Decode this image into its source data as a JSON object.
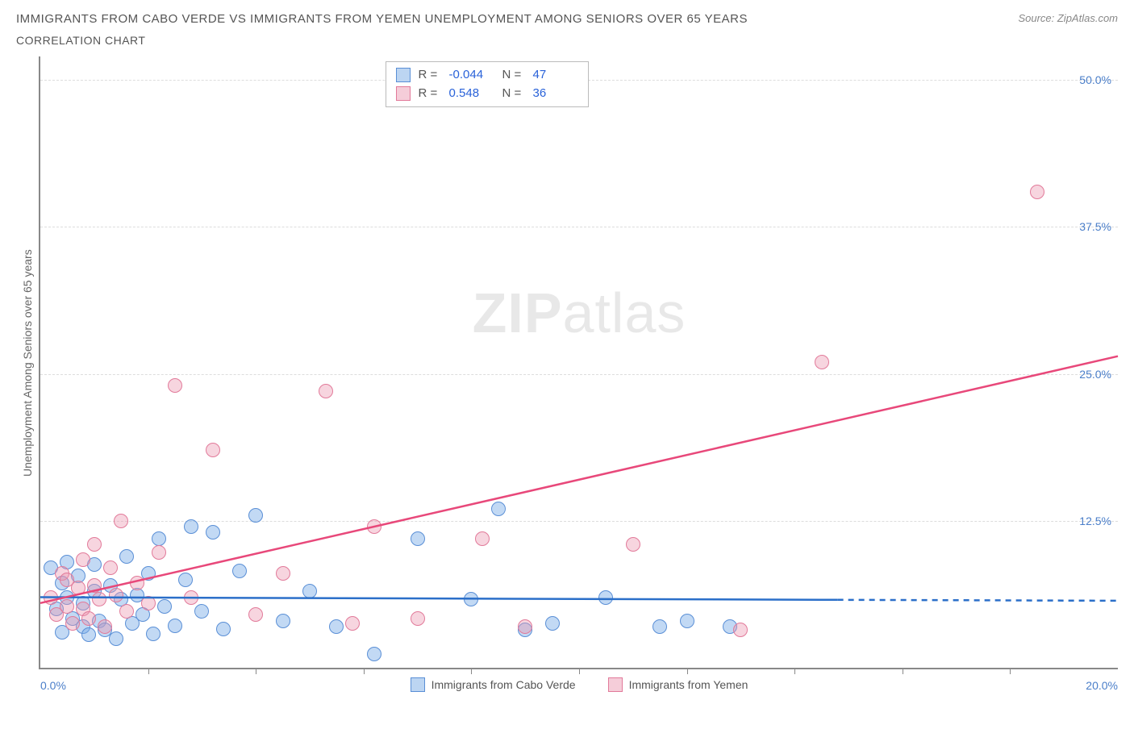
{
  "title": "IMMIGRANTS FROM CABO VERDE VS IMMIGRANTS FROM YEMEN UNEMPLOYMENT AMONG SENIORS OVER 65 YEARS",
  "subtitle": "CORRELATION CHART",
  "source_label": "Source: ZipAtlas.com",
  "y_axis_label": "Unemployment Among Seniors over 65 years",
  "watermark_bold": "ZIP",
  "watermark_rest": "atlas",
  "chart": {
    "type": "scatter",
    "background_color": "#ffffff",
    "grid_color": "#dddddd",
    "axis_color": "#888888",
    "xlim": [
      0,
      20
    ],
    "ylim": [
      0,
      52
    ],
    "x_ticks_major": [
      0,
      20
    ],
    "x_tick_labels": [
      "0.0%",
      "20.0%"
    ],
    "x_ticks_minor": [
      2,
      4,
      6,
      8,
      10,
      12,
      14,
      16,
      18
    ],
    "y_ticks": [
      12.5,
      25.0,
      37.5,
      50.0
    ],
    "y_tick_labels": [
      "12.5%",
      "25.0%",
      "37.5%",
      "50.0%"
    ],
    "marker_size": 18,
    "marker_border_width": 1.5,
    "series": [
      {
        "name": "Immigrants from Cabo Verde",
        "color_fill": "rgba(120,170,230,0.45)",
        "color_stroke": "#5a8fd6",
        "swatch_fill": "#bcd5f2",
        "swatch_stroke": "#5a8fd6",
        "R": "-0.044",
        "N": "47",
        "trend": {
          "x1": 0,
          "y1": 6.0,
          "x2": 20,
          "y2": 5.7,
          "solid_to_x": 14.8,
          "color": "#2b6fc9",
          "width": 2.5
        },
        "points": [
          [
            0.2,
            8.5
          ],
          [
            0.3,
            5.0
          ],
          [
            0.4,
            7.2
          ],
          [
            0.4,
            3.0
          ],
          [
            0.5,
            6.0
          ],
          [
            0.5,
            9.0
          ],
          [
            0.6,
            4.2
          ],
          [
            0.7,
            7.8
          ],
          [
            0.8,
            3.5
          ],
          [
            0.8,
            5.5
          ],
          [
            0.9,
            2.8
          ],
          [
            1.0,
            6.5
          ],
          [
            1.0,
            8.8
          ],
          [
            1.1,
            4.0
          ],
          [
            1.2,
            3.2
          ],
          [
            1.3,
            7.0
          ],
          [
            1.4,
            2.5
          ],
          [
            1.5,
            5.8
          ],
          [
            1.6,
            9.5
          ],
          [
            1.7,
            3.8
          ],
          [
            1.8,
            6.2
          ],
          [
            1.9,
            4.5
          ],
          [
            2.0,
            8.0
          ],
          [
            2.1,
            2.9
          ],
          [
            2.2,
            11.0
          ],
          [
            2.3,
            5.2
          ],
          [
            2.5,
            3.6
          ],
          [
            2.7,
            7.5
          ],
          [
            2.8,
            12.0
          ],
          [
            3.0,
            4.8
          ],
          [
            3.2,
            11.5
          ],
          [
            3.4,
            3.3
          ],
          [
            3.7,
            8.2
          ],
          [
            4.0,
            13.0
          ],
          [
            4.5,
            4.0
          ],
          [
            5.0,
            6.5
          ],
          [
            5.5,
            3.5
          ],
          [
            6.2,
            1.2
          ],
          [
            7.0,
            11.0
          ],
          [
            8.0,
            5.8
          ],
          [
            8.5,
            13.5
          ],
          [
            9.5,
            3.8
          ],
          [
            10.5,
            6.0
          ],
          [
            11.5,
            3.5
          ],
          [
            12.0,
            4.0
          ],
          [
            12.8,
            3.5
          ],
          [
            9.0,
            3.2
          ]
        ]
      },
      {
        "name": "Immigrants from Yemen",
        "color_fill": "rgba(235,150,175,0.40)",
        "color_stroke": "#e27a9a",
        "swatch_fill": "#f5cdd9",
        "swatch_stroke": "#e27a9a",
        "R": "0.548",
        "N": "36",
        "trend": {
          "x1": 0,
          "y1": 5.5,
          "x2": 20,
          "y2": 26.5,
          "solid_to_x": 20,
          "color": "#e8487a",
          "width": 2.5
        },
        "points": [
          [
            0.2,
            6.0
          ],
          [
            0.3,
            4.5
          ],
          [
            0.4,
            8.0
          ],
          [
            0.5,
            5.2
          ],
          [
            0.5,
            7.5
          ],
          [
            0.6,
            3.8
          ],
          [
            0.7,
            6.8
          ],
          [
            0.8,
            9.2
          ],
          [
            0.8,
            5.0
          ],
          [
            0.9,
            4.2
          ],
          [
            1.0,
            7.0
          ],
          [
            1.0,
            10.5
          ],
          [
            1.1,
            5.8
          ],
          [
            1.2,
            3.5
          ],
          [
            1.3,
            8.5
          ],
          [
            1.4,
            6.2
          ],
          [
            1.5,
            12.5
          ],
          [
            1.6,
            4.8
          ],
          [
            1.8,
            7.2
          ],
          [
            2.0,
            5.5
          ],
          [
            2.2,
            9.8
          ],
          [
            2.5,
            24.0
          ],
          [
            2.8,
            6.0
          ],
          [
            3.2,
            18.5
          ],
          [
            4.0,
            4.5
          ],
          [
            4.5,
            8.0
          ],
          [
            5.3,
            23.5
          ],
          [
            5.8,
            3.8
          ],
          [
            6.2,
            12.0
          ],
          [
            7.0,
            4.2
          ],
          [
            8.2,
            11.0
          ],
          [
            9.0,
            3.5
          ],
          [
            11.0,
            10.5
          ],
          [
            13.0,
            3.2
          ],
          [
            14.5,
            26.0
          ],
          [
            18.5,
            40.5
          ]
        ]
      }
    ],
    "stats_legend_labels": {
      "R": "R =",
      "N": "N ="
    },
    "bottom_legend": [
      {
        "label": "Immigrants from Cabo Verde",
        "series": 0
      },
      {
        "label": "Immigrants from Yemen",
        "series": 1
      }
    ]
  }
}
